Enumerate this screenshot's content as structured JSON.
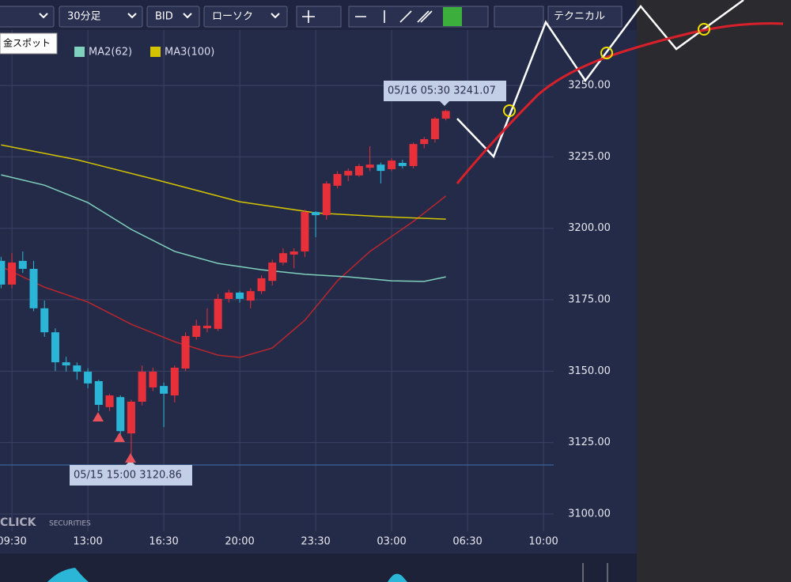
{
  "toolbar": {
    "timeframe": "30分足",
    "price_side": "BID",
    "chart_style": "ローソク",
    "technical": "テクニカル",
    "symbol_tooltip": "金スポット"
  },
  "brand": {
    "name": "CLICK",
    "suffix": "SECURITIES"
  },
  "chart_data": {
    "type": "candlestick",
    "x": [
      9.0,
      9.5,
      10.0,
      10.5,
      11.0,
      11.5,
      12.0,
      12.5,
      13.0,
      13.5,
      14.0,
      14.5,
      15.0,
      15.5,
      16.0,
      16.5,
      17.0,
      17.5,
      18.0,
      18.5,
      19.0,
      19.5,
      20.0,
      20.5,
      21.0,
      21.5,
      22.0,
      22.5,
      23.0,
      23.5,
      24.0,
      24.5,
      25.0,
      25.5,
      26.0,
      26.5,
      27.0,
      27.5,
      28.0,
      28.5,
      29.0,
      29.5
    ],
    "open": [
      3188.6,
      3180.3,
      3188.6,
      3185.8,
      3172.0,
      3163.6,
      3153.1,
      3152.0,
      3149.8,
      3146.5,
      3137.4,
      3140.9,
      3128.2,
      3139.3,
      3144.3,
      3144.8,
      3141.5,
      3150.9,
      3162.0,
      3165.0,
      3164.8,
      3175.3,
      3177.5,
      3174.7,
      3178.0,
      3181.6,
      3188.0,
      3190.8,
      3191.9,
      3205.7,
      3204.6,
      3214.9,
      3218.5,
      3218.5,
      3221.2,
      3222.3,
      3220.7,
      3222.9,
      3221.8,
      3229.5,
      3231.2,
      3238.4
    ],
    "high": [
      3190.0,
      3191.3,
      3191.9,
      3188.6,
      3174.7,
      3165.0,
      3155.0,
      3153.0,
      3151.0,
      3147.0,
      3142.0,
      3141.5,
      3140.0,
      3152.0,
      3151.2,
      3146.0,
      3152.0,
      3163.6,
      3168.0,
      3172.0,
      3177.0,
      3178.5,
      3178.0,
      3179.0,
      3183.5,
      3189.0,
      3193.0,
      3193.0,
      3206.5,
      3206.0,
      3216.5,
      3220.0,
      3221.0,
      3222.5,
      3228.7,
      3223.0,
      3224.5,
      3224.0,
      3230.0,
      3232.0,
      3239.0,
      3241.5
    ],
    "low": [
      3179.0,
      3179.0,
      3184.4,
      3171.0,
      3162.0,
      3150.0,
      3149.8,
      3147.0,
      3144.0,
      3136.0,
      3136.0,
      3127.0,
      3120.86,
      3138.0,
      3143.0,
      3130.4,
      3139.0,
      3150.0,
      3161.0,
      3163.6,
      3164.0,
      3174.0,
      3174.0,
      3172.0,
      3177.0,
      3180.0,
      3187.0,
      3186.0,
      3190.0,
      3196.9,
      3203.0,
      3214.0,
      3216.5,
      3218.0,
      3220.0,
      3215.7,
      3220.0,
      3221.0,
      3221.0,
      3228.0,
      3230.0,
      3237.8
    ],
    "close": [
      3180.3,
      3188.0,
      3185.8,
      3172.0,
      3163.6,
      3153.1,
      3152.0,
      3149.8,
      3145.7,
      3138.2,
      3141.5,
      3129.0,
      3139.3,
      3149.8,
      3149.8,
      3142.1,
      3151.2,
      3162.3,
      3165.9,
      3165.9,
      3175.3,
      3177.5,
      3175.3,
      3178.0,
      3182.5,
      3188.0,
      3191.3,
      3191.9,
      3205.7,
      3204.6,
      3215.7,
      3219.0,
      3220.1,
      3221.8,
      3222.3,
      3220.1,
      3223.7,
      3221.8,
      3229.5,
      3231.2,
      3238.4,
      3241.07
    ],
    "up_color": "#e8303a",
    "down_color": "#2bb6d8",
    "series": [
      {
        "color": "#b8262e",
        "x": [
          9.0,
          11.0,
          13.0,
          15.0,
          17.0,
          19.0,
          20.0,
          21.5,
          23.0,
          24.5,
          26.0,
          28.0,
          29.5
        ],
        "values": [
          3186.6,
          3179.4,
          3174.2,
          3166.4,
          3160.3,
          3155.6,
          3154.8,
          3158.1,
          3167.8,
          3181.6,
          3191.9,
          3202.4,
          3211.3
        ]
      },
      {
        "name": "MA2(62)",
        "color": "#7fd1bd",
        "x": [
          9.0,
          11.0,
          13.0,
          15.0,
          17.0,
          19.0,
          21.0,
          23.0,
          25.0,
          27.0,
          28.5,
          29.5
        ],
        "values": [
          3218.7,
          3215.1,
          3209.0,
          3199.6,
          3191.9,
          3187.7,
          3185.5,
          3183.9,
          3183.0,
          3181.6,
          3181.4,
          3183.0
        ]
      },
      {
        "name": "MA3(100)",
        "color": "#d4c400",
        "x": [
          9.0,
          12.5,
          16.0,
          20.0,
          23.5,
          26.5,
          29.5
        ],
        "values": [
          3229.2,
          3224.0,
          3217.3,
          3209.3,
          3205.4,
          3204.1,
          3203.2
        ]
      }
    ],
    "xlim": [
      8.95,
      34.47
    ],
    "ylim": [
      3093.9,
      3269.4
    ],
    "xticks": [
      {
        "value": 9.5,
        "label": "09:30"
      },
      {
        "value": 13,
        "label": "13:00"
      },
      {
        "value": 16.5,
        "label": "16:30"
      },
      {
        "value": 20,
        "label": "20:00"
      },
      {
        "value": 23.5,
        "label": "23:30"
      },
      {
        "value": 27,
        "label": "03:00"
      },
      {
        "value": 30.5,
        "label": "06:30"
      },
      {
        "value": 34,
        "label": "10:00"
      }
    ],
    "yticks": [
      {
        "value": 3100,
        "label": "3100.00"
      },
      {
        "value": 3125,
        "label": "3125.00"
      },
      {
        "value": 3150,
        "label": "3150.00"
      },
      {
        "value": 3175,
        "label": "3175.00"
      },
      {
        "value": 3200,
        "label": "3200.00"
      },
      {
        "value": 3225,
        "label": "3225.00"
      },
      {
        "value": 3250,
        "label": "3250.00"
      }
    ],
    "grid": true,
    "annotations": [
      "05/16 05:30 3241.07",
      "05/15 15:00 3120.86"
    ]
  }
}
